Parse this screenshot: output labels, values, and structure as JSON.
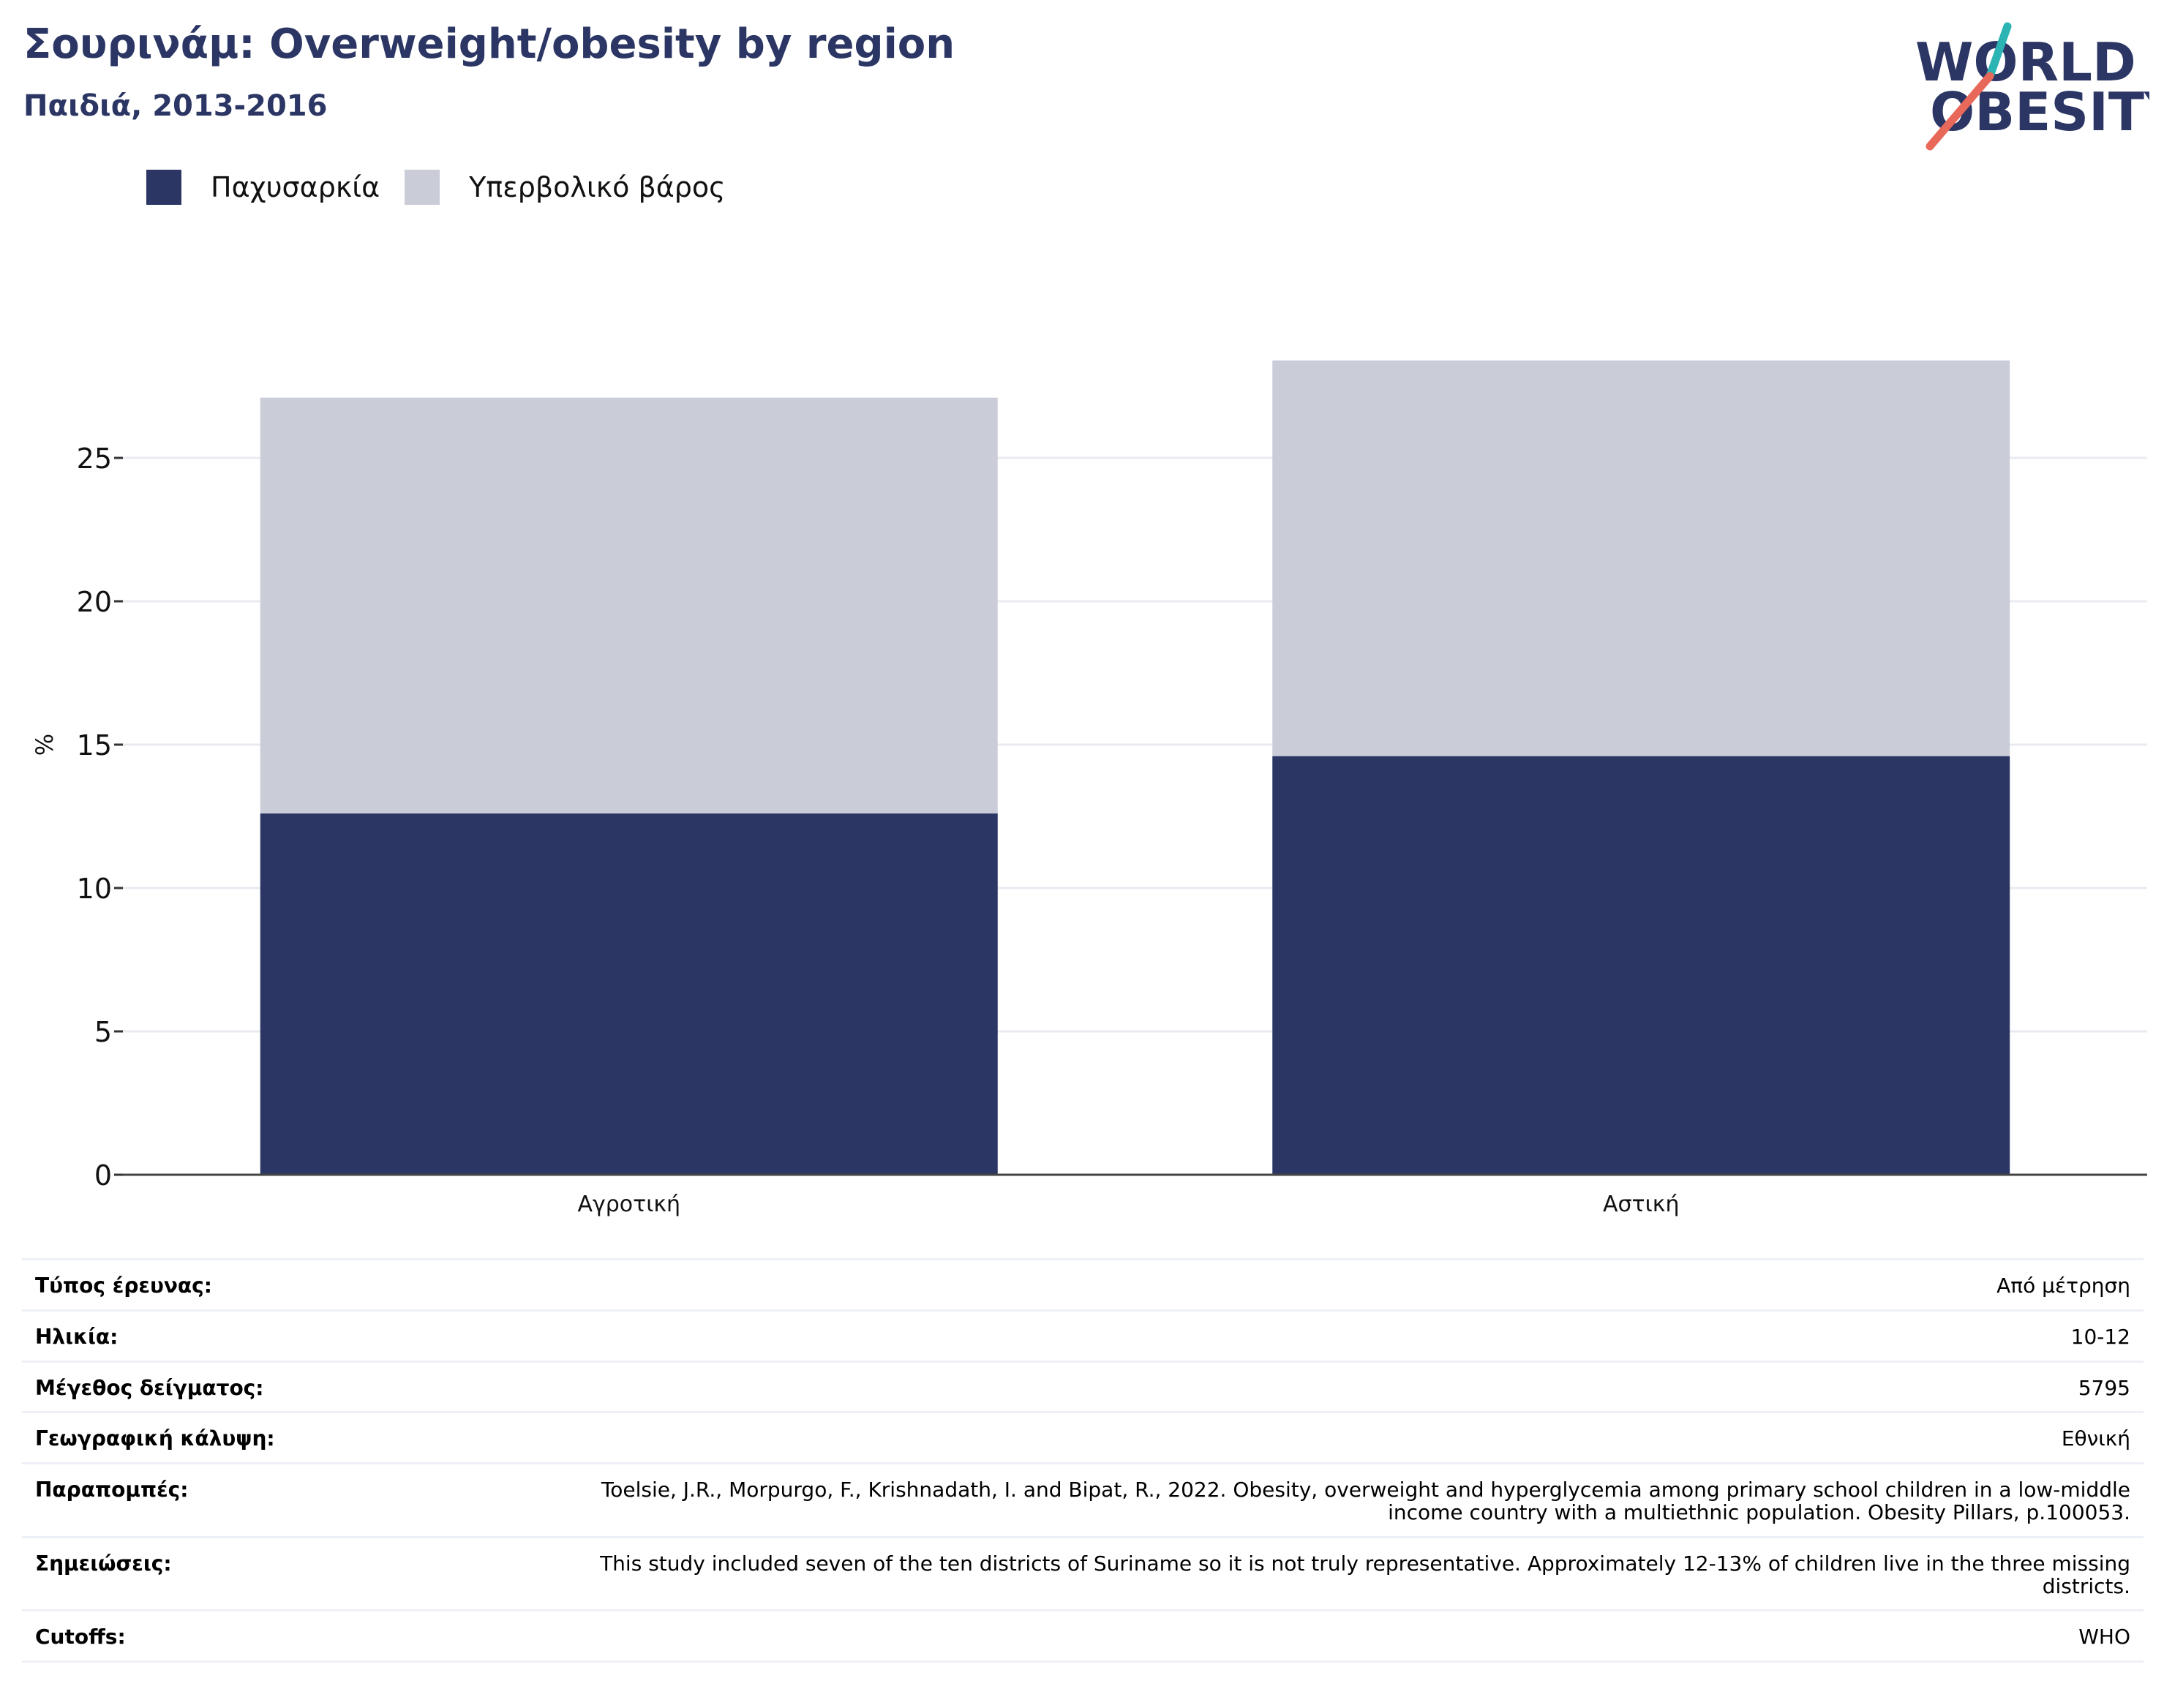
{
  "title": "Σουρινάμ: Overweight/obesity by region",
  "subtitle": "Παιδιά, 2013-2016",
  "logo": {
    "line1": "WORLD",
    "line2": "OBESITY"
  },
  "colors": {
    "obesity": "#2b3664",
    "overweight": "#cacdd8",
    "title": "#2b3664",
    "logo_teal": "#2cb3b3",
    "logo_red": "#e8685a"
  },
  "legend": [
    {
      "label": "Παχυσαρκία",
      "color": "#2b3664"
    },
    {
      "label": "Υπερβολικό βάρος",
      "color": "#cacdd8"
    }
  ],
  "chart_data": {
    "type": "bar",
    "stacked": true,
    "categories": [
      "Αγροτική",
      "Αστική"
    ],
    "series": [
      {
        "name": "Παχυσαρκία",
        "values": [
          12.6,
          14.6
        ]
      },
      {
        "name": "Υπερβολικό βάρος",
        "values": [
          14.5,
          13.8
        ]
      }
    ],
    "ylabel": "%",
    "yticks": [
      0,
      5,
      10,
      15,
      20,
      25
    ],
    "ylim": [
      0,
      30
    ],
    "grid": true,
    "legend_position": "top-left"
  },
  "info": [
    {
      "key": "Τύπος έρευνας:",
      "value": "Από μέτρηση"
    },
    {
      "key": "Ηλικία:",
      "value": "10-12"
    },
    {
      "key": "Μέγεθος δείγματος:",
      "value": "5795"
    },
    {
      "key": "Γεωγραφική κάλυψη:",
      "value": "Εθνική"
    },
    {
      "key": "Παραπομπές:",
      "value": "Toelsie, J.R., Morpurgo, F., Krishnadath, I. and Bipat, R., 2022. Obesity, overweight and hyperglycemia among primary school children in a low-middle income country with a multiethnic population. Obesity Pillars, p.100053."
    },
    {
      "key": "Σημειώσεις:",
      "value": "This study included seven of the ten districts of Suriname so it is not truly representative. Approximately 12-13% of children live in the three missing districts."
    },
    {
      "key": "Cutoffs:",
      "value": "WHO"
    }
  ]
}
